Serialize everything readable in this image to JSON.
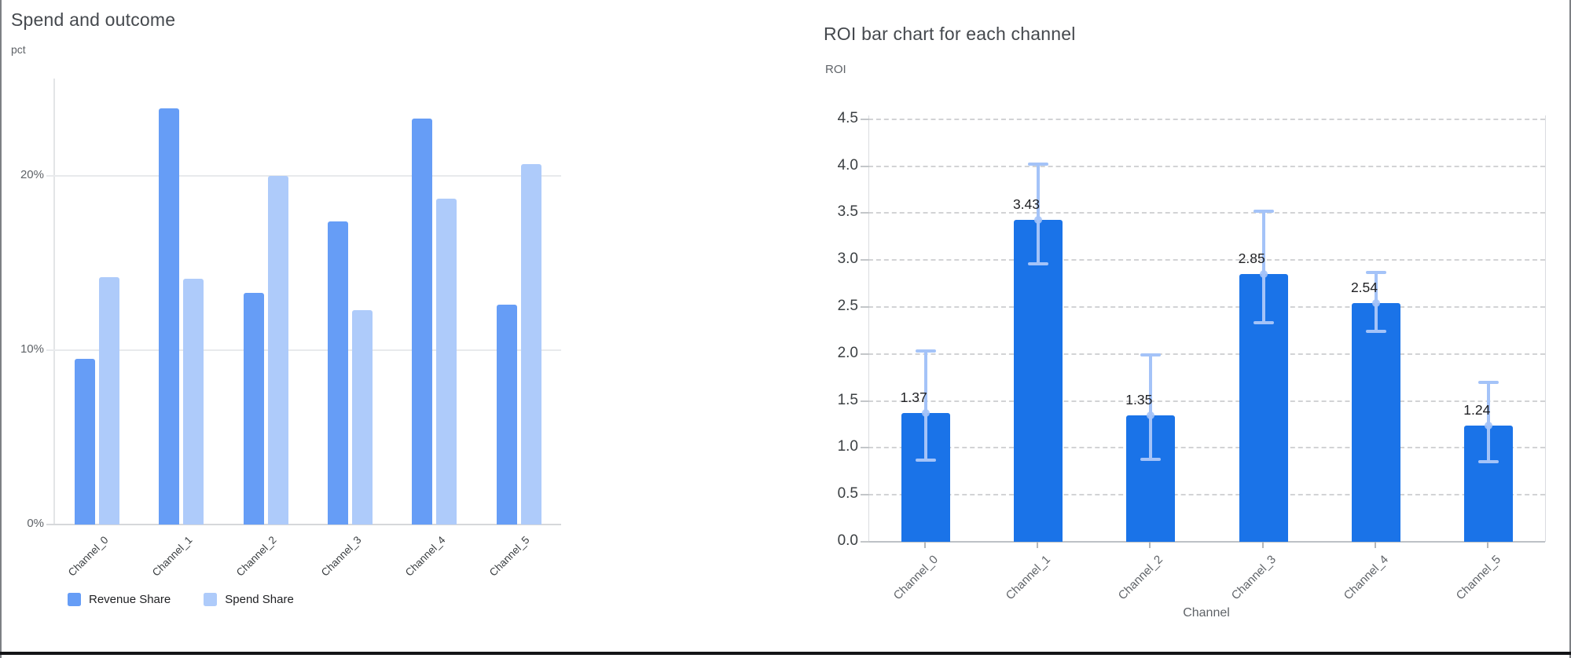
{
  "frame": {
    "bottom_rule_color": "#131416"
  },
  "chart_data": [
    {
      "type": "bar",
      "title": "Spend and outcome",
      "xlabel": "",
      "ylabel": "pct",
      "categories": [
        "Channel_0",
        "Channel_1",
        "Channel_2",
        "Channel_3",
        "Channel_4",
        "Channel_5"
      ],
      "series": [
        {
          "name": "Revenue Share",
          "color": "#669df6",
          "values": [
            9.5,
            23.9,
            13.3,
            17.4,
            23.3,
            12.6
          ]
        },
        {
          "name": "Spend Share",
          "color": "#aecbfa",
          "values": [
            14.2,
            14.1,
            20.0,
            12.3,
            18.7,
            20.7
          ]
        }
      ],
      "y_ticks": [
        {
          "value": 0,
          "label": "0%"
        },
        {
          "value": 10,
          "label": "10%"
        },
        {
          "value": 20,
          "label": "20%"
        }
      ],
      "ylim": [
        0,
        25.6
      ],
      "grid": "horizontal-solid",
      "legend_position": "bottom-left"
    },
    {
      "type": "bar",
      "title": "ROI bar chart for each channel",
      "xlabel": "Channel",
      "ylabel": "ROI",
      "categories": [
        "Channel_0",
        "Channel_1",
        "Channel_2",
        "Channel_3",
        "Channel_4",
        "Channel_5"
      ],
      "values": [
        1.37,
        3.43,
        1.35,
        2.85,
        2.54,
        1.24
      ],
      "bar_labels": [
        "1.37",
        "3.43",
        "1.35",
        "2.85",
        "2.54",
        "1.24"
      ],
      "error_low": [
        0.87,
        2.96,
        0.88,
        2.33,
        2.24,
        0.85
      ],
      "error_high": [
        2.03,
        4.02,
        1.99,
        3.52,
        2.87,
        1.7
      ],
      "bar_color": "#1a73e8",
      "error_color": "#a4c3f8",
      "y_ticks": [
        {
          "value": 0.0,
          "label": "0.0"
        },
        {
          "value": 0.5,
          "label": "0.5"
        },
        {
          "value": 1.0,
          "label": "1.0"
        },
        {
          "value": 1.5,
          "label": "1.5"
        },
        {
          "value": 2.0,
          "label": "2.0"
        },
        {
          "value": 2.5,
          "label": "2.5"
        },
        {
          "value": 3.0,
          "label": "3.0"
        },
        {
          "value": 3.5,
          "label": "3.5"
        },
        {
          "value": 4.0,
          "label": "4.0"
        },
        {
          "value": 4.5,
          "label": "4.5"
        }
      ],
      "ylim": [
        0,
        4.54
      ],
      "grid": "horizontal-dashed",
      "legend_position": "none"
    }
  ]
}
